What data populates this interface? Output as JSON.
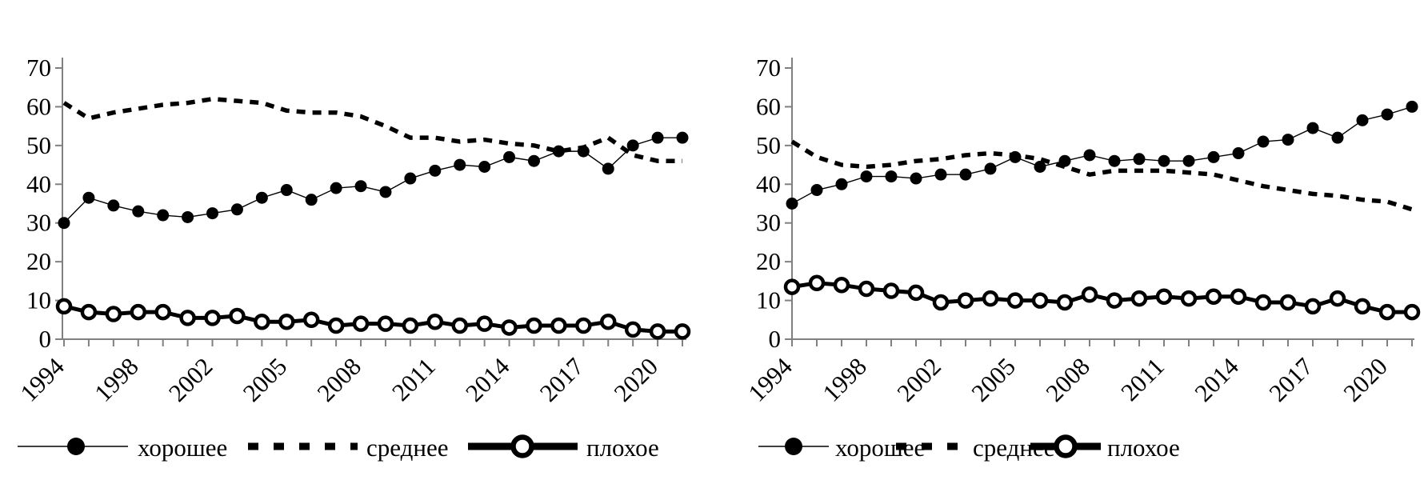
{
  "figure": {
    "background": "#ffffff",
    "description_visible_text_only": true
  },
  "colors": {
    "series_line": "#000000",
    "axis_line": "#808080",
    "marker_fill_open": "#ffffff",
    "background": "#ffffff"
  },
  "chart_data": [
    {
      "id": "left-chart",
      "type": "line",
      "title": "",
      "xlabel": "",
      "ylabel": "",
      "ylim": [
        0,
        70
      ],
      "yticks": [
        0,
        10,
        20,
        30,
        40,
        50,
        60,
        70
      ],
      "grid": false,
      "legend_position": "bottom",
      "n_points": 26,
      "x_tick_labels": [
        "1994",
        "1998",
        "2002",
        "2005",
        "2008",
        "2011",
        "2014",
        "2017",
        "2020"
      ],
      "x_tick_indices": [
        0,
        3,
        6,
        9,
        12,
        15,
        18,
        21,
        24
      ],
      "series": [
        {
          "name": "хорошее",
          "style": "thin-solid-filled-circle",
          "values": [
            30,
            36.5,
            34.5,
            33,
            32,
            31.5,
            32.5,
            33.5,
            36.5,
            38.5,
            36,
            39,
            39.5,
            38,
            41.5,
            43.5,
            45,
            44.5,
            47,
            46,
            48.5,
            48.5,
            44,
            50,
            52,
            52
          ]
        },
        {
          "name": "среднее",
          "style": "thick-dashed",
          "values": [
            61,
            57,
            58.5,
            59.5,
            60.5,
            61,
            62,
            61.5,
            61,
            59,
            58.5,
            58.5,
            57.5,
            55,
            52,
            52,
            51,
            51.5,
            50.5,
            50,
            48.5,
            49.5,
            52,
            47.5,
            46,
            46
          ]
        },
        {
          "name": "плохое",
          "style": "thick-solid-open-circle",
          "values": [
            8.5,
            7,
            6.5,
            7,
            7,
            5.5,
            5.5,
            6,
            4.5,
            4.5,
            5,
            3.5,
            4,
            4,
            3.5,
            4.5,
            3.5,
            4,
            3,
            3.5,
            3.5,
            3.5,
            4.5,
            2.5,
            2,
            2
          ]
        }
      ],
      "legend": [
        "хорошее",
        "среднее",
        "плохое"
      ]
    },
    {
      "id": "right-chart",
      "type": "line",
      "title": "",
      "xlabel": "",
      "ylabel": "",
      "ylim": [
        0,
        70
      ],
      "yticks": [
        0,
        10,
        20,
        30,
        40,
        50,
        60,
        70
      ],
      "grid": false,
      "legend_position": "bottom",
      "n_points": 26,
      "x_tick_labels": [
        "1994",
        "1998",
        "2002",
        "2005",
        "2008",
        "2011",
        "2014",
        "2017",
        "2020"
      ],
      "x_tick_indices": [
        0,
        3,
        6,
        9,
        12,
        15,
        18,
        21,
        24
      ],
      "series": [
        {
          "name": "хорошее",
          "style": "thin-solid-filled-circle",
          "values": [
            35,
            38.5,
            40,
            42,
            42,
            41.5,
            42.5,
            42.5,
            44,
            47,
            44.5,
            46,
            47.5,
            46,
            46.5,
            46,
            46,
            47,
            48,
            51,
            51.5,
            54.5,
            52,
            56.5,
            58,
            60
          ]
        },
        {
          "name": "среднее",
          "style": "thick-dashed",
          "values": [
            51,
            47,
            45,
            44.5,
            45,
            46,
            46.5,
            47.5,
            48,
            47.5,
            46.5,
            44.5,
            42.5,
            43.5,
            43.5,
            43.5,
            43,
            42.5,
            41,
            39.5,
            38.5,
            37.5,
            37,
            36,
            35.5,
            33.5
          ]
        },
        {
          "name": "плохое",
          "style": "thick-solid-open-circle",
          "values": [
            13.5,
            14.5,
            14,
            13,
            12.5,
            12,
            9.5,
            10,
            10.5,
            10,
            10,
            9.5,
            11.5,
            10,
            10.5,
            11,
            10.5,
            11,
            11,
            9.5,
            9.5,
            8.5,
            10.5,
            8.5,
            7,
            7
          ]
        }
      ],
      "legend": [
        "хорошее",
        "среднее",
        "плохое"
      ]
    }
  ]
}
